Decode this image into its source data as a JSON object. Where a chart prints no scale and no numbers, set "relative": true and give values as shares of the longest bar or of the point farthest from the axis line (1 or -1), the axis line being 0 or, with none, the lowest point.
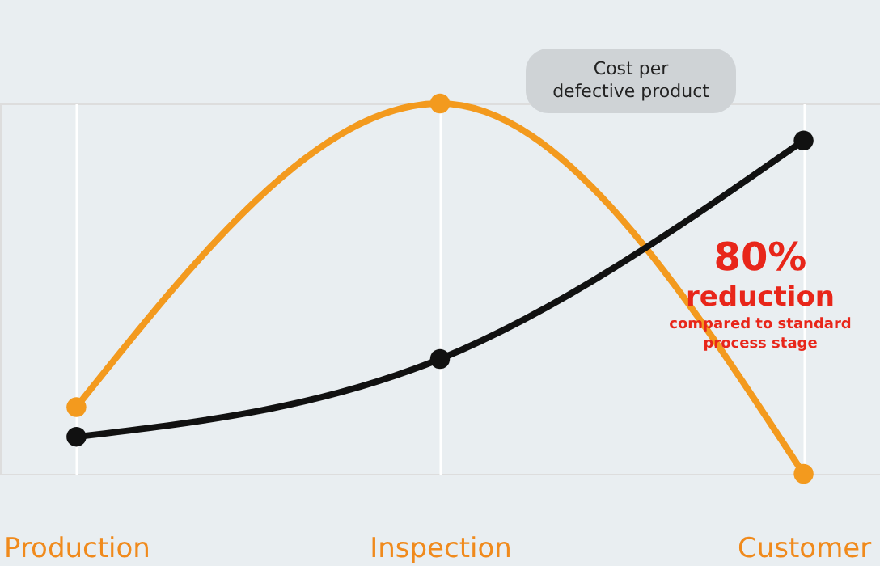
{
  "chart_data": {
    "type": "line",
    "relative": true,
    "categories": [
      "Production",
      "Inspection",
      "Customer"
    ],
    "series": [
      {
        "color": "#f39a1e",
        "values": [
          0.18,
          1,
          0
        ]
      },
      {
        "color": "#111111",
        "values": [
          0.1,
          0.31,
          0.9
        ]
      }
    ],
    "marker": "circle",
    "grid": "x",
    "annotations": [
      "Cost per defective product",
      "80%",
      "reduction",
      "compared to standard process stage"
    ]
  }
}
